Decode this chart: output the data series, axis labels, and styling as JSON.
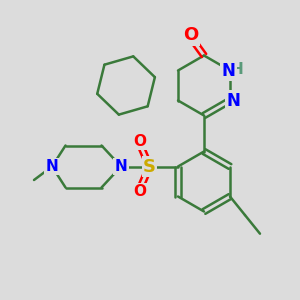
{
  "background_color": "#dcdcdc",
  "bond_color": "#3a7a3a",
  "bond_width": 1.8,
  "atom_colors": {
    "O": "#ff0000",
    "N": "#0000ff",
    "S": "#ccaa00",
    "H": "#5a9a7a",
    "C": "#000000"
  },
  "font_size_atom": 11,
  "figsize": [
    3.0,
    3.0
  ],
  "dpi": 100
}
